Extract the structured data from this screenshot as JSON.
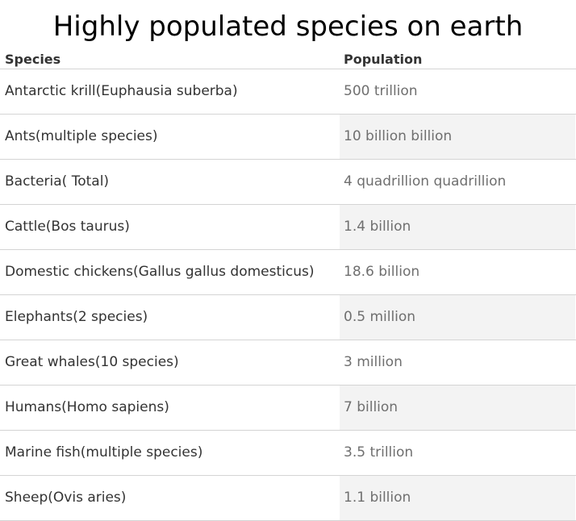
{
  "chart_data": {
    "type": "table",
    "title": "Highly populated species on earth",
    "columns": [
      "Species",
      "Population"
    ],
    "rows": [
      {
        "species": "Antarctic krill(Euphausia suberba)",
        "population": "500 trillion"
      },
      {
        "species": "Ants(multiple species)",
        "population": "10 billion billion"
      },
      {
        "species": "Bacteria( Total)",
        "population": "4 quadrillion quadrillion"
      },
      {
        "species": "Cattle(Bos taurus)",
        "population": "1.4 billion"
      },
      {
        "species": "Domestic chickens(Gallus gallus domesticus)",
        "population": "18.6 billion"
      },
      {
        "species": "Elephants(2 species)",
        "population": "0.5 million"
      },
      {
        "species": "Great whales(10 species)",
        "population": "3 million"
      },
      {
        "species": "Humans(Homo sapiens)",
        "population": "7 billion"
      },
      {
        "species": "Marine fish(multiple species)",
        "population": "3.5 trillion"
      },
      {
        "species": "Sheep(Ovis aries)",
        "population": "1.1 billion"
      }
    ]
  }
}
